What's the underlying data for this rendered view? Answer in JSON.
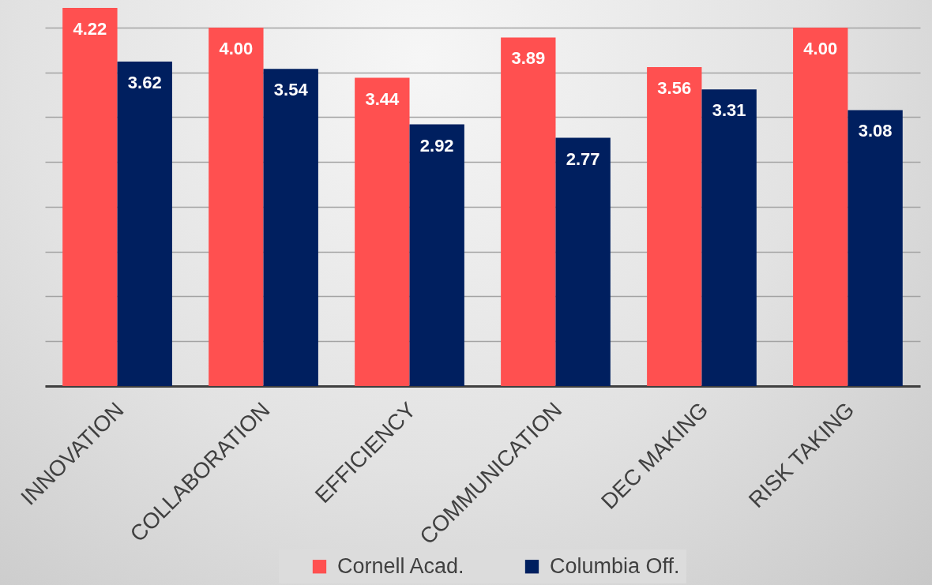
{
  "chart_data": {
    "type": "bar",
    "categories": [
      "INNOVATION",
      "COLLABORATION",
      "EFFICIENCY",
      "COMMUNICATION",
      "DEC MAKING",
      "RISK TAKING"
    ],
    "series": [
      {
        "name": "Cornell Acad.",
        "color": "#ff5050",
        "values": [
          4.22,
          4.0,
          3.44,
          3.89,
          3.56,
          4.0
        ],
        "value_labels": [
          "4.22",
          "4.00",
          "3.44",
          "3.89",
          "3.56",
          "4.00"
        ]
      },
      {
        "name": "Columbia Off.",
        "color": "#001f5f",
        "values": [
          3.62,
          3.54,
          2.92,
          2.77,
          3.31,
          3.08
        ],
        "value_labels": [
          "3.62",
          "3.54",
          "2.92",
          "2.77",
          "3.31",
          "3.08"
        ]
      }
    ],
    "yticks": [
      0,
      0.5,
      1,
      1.5,
      2,
      2.5,
      3,
      3.5,
      4
    ],
    "grid": "y",
    "tick_labels": "x",
    "legend": "bottom"
  }
}
